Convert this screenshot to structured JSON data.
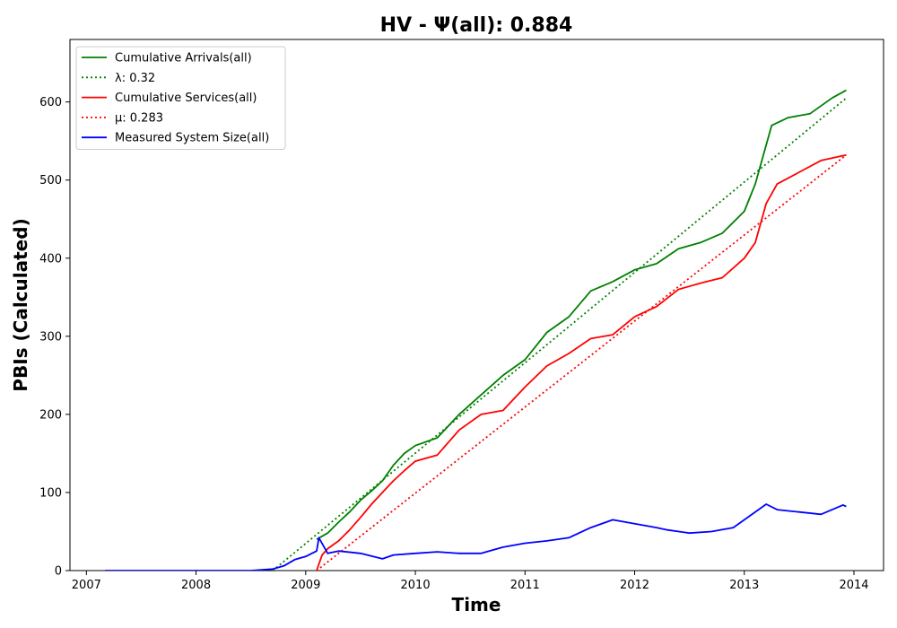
{
  "chart_data": {
    "type": "line",
    "title": "HV -  Ψ(all): 0.884",
    "xlabel": "Time",
    "ylabel": "PBIs (Calculated)",
    "xlim": [
      2006.85,
      2014.27
    ],
    "ylim": [
      0,
      680
    ],
    "x_ticks": [
      2007,
      2008,
      2009,
      2010,
      2011,
      2012,
      2013,
      2014
    ],
    "y_ticks": [
      0,
      100,
      200,
      300,
      400,
      500,
      600
    ],
    "legend_position": "upper-left",
    "grid": false,
    "series": [
      {
        "name": "Cumulative Arrivals(all)",
        "style": "solid",
        "color": "#008000",
        "x": [
          2009.1,
          2009.2,
          2009.3,
          2009.4,
          2009.5,
          2009.6,
          2009.7,
          2009.8,
          2009.9,
          2010.0,
          2010.2,
          2010.4,
          2010.6,
          2010.8,
          2011.0,
          2011.2,
          2011.4,
          2011.6,
          2011.8,
          2012.0,
          2012.2,
          2012.4,
          2012.6,
          2012.8,
          2013.0,
          2013.1,
          2013.2,
          2013.25,
          2013.4,
          2013.6,
          2013.8,
          2013.93
        ],
        "y": [
          40,
          48,
          62,
          75,
          90,
          102,
          115,
          135,
          150,
          160,
          170,
          200,
          225,
          250,
          270,
          305,
          325,
          358,
          370,
          385,
          393,
          412,
          420,
          432,
          460,
          495,
          545,
          570,
          580,
          585,
          605,
          615
        ]
      },
      {
        "name": "λ: 0.32",
        "style": "dotted",
        "color": "#008000",
        "x": [
          2008.7,
          2013.93
        ],
        "y": [
          0,
          605
        ]
      },
      {
        "name": "Cumulative Services(all)",
        "style": "solid",
        "color": "#ff0000",
        "x": [
          2009.1,
          2009.15,
          2009.2,
          2009.3,
          2009.4,
          2009.5,
          2009.6,
          2009.7,
          2009.8,
          2009.9,
          2010.0,
          2010.2,
          2010.4,
          2010.6,
          2010.8,
          2011.0,
          2011.2,
          2011.4,
          2011.6,
          2011.8,
          2012.0,
          2012.2,
          2012.4,
          2012.6,
          2012.8,
          2013.0,
          2013.1,
          2013.2,
          2013.3,
          2013.5,
          2013.7,
          2013.93
        ],
        "y": [
          0,
          20,
          28,
          38,
          52,
          68,
          85,
          100,
          115,
          128,
          140,
          148,
          180,
          200,
          205,
          235,
          262,
          278,
          297,
          302,
          325,
          338,
          360,
          368,
          375,
          400,
          420,
          470,
          495,
          510,
          525,
          532
        ]
      },
      {
        "name": "μ: 0.283",
        "style": "dotted",
        "color": "#ff0000",
        "x": [
          2009.1,
          2013.93
        ],
        "y": [
          0,
          532
        ]
      },
      {
        "name": "Measured System Size(all)",
        "style": "solid",
        "color": "#0000ff",
        "x": [
          2007.17,
          2007.5,
          2008.0,
          2008.5,
          2008.7,
          2008.8,
          2008.9,
          2009.0,
          2009.1,
          2009.12,
          2009.2,
          2009.3,
          2009.5,
          2009.7,
          2009.8,
          2010.0,
          2010.2,
          2010.4,
          2010.6,
          2010.8,
          2011.0,
          2011.2,
          2011.4,
          2011.6,
          2011.8,
          2012.0,
          2012.2,
          2012.3,
          2012.5,
          2012.7,
          2012.9,
          2013.0,
          2013.2,
          2013.3,
          2013.5,
          2013.7,
          2013.9,
          2013.93
        ],
        "y": [
          0,
          0,
          0,
          0,
          2,
          6,
          14,
          18,
          25,
          42,
          22,
          25,
          22,
          15,
          20,
          22,
          24,
          22,
          22,
          30,
          35,
          38,
          42,
          55,
          65,
          60,
          55,
          52,
          48,
          50,
          55,
          65,
          85,
          78,
          75,
          72,
          84,
          82
        ]
      }
    ]
  }
}
